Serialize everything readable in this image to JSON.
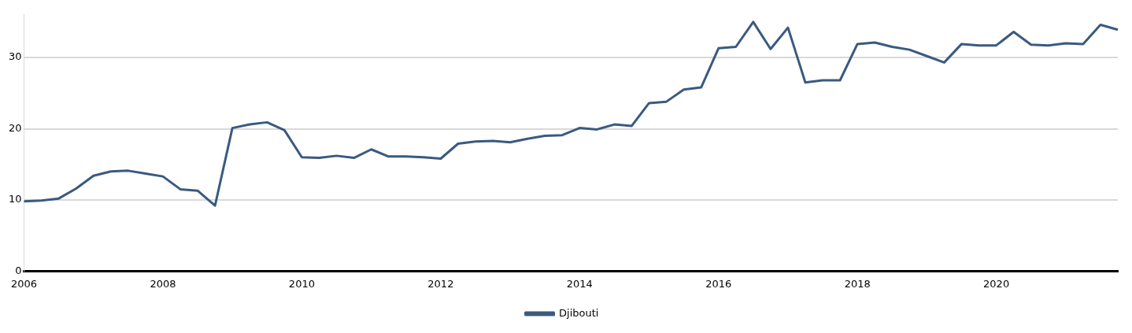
{
  "chart_data": {
    "type": "line",
    "x": [
      2006,
      2006.25,
      2006.5,
      2006.75,
      2007,
      2007.25,
      2007.5,
      2007.75,
      2008,
      2008.25,
      2008.5,
      2008.75,
      2009,
      2009.25,
      2009.5,
      2009.75,
      2010,
      2010.25,
      2010.5,
      2010.75,
      2011,
      2011.25,
      2011.5,
      2011.75,
      2012,
      2012.25,
      2012.5,
      2012.75,
      2013,
      2013.25,
      2013.5,
      2013.75,
      2014,
      2014.25,
      2014.5,
      2014.75,
      2015,
      2015.25,
      2015.5,
      2015.75,
      2016,
      2016.25,
      2016.5,
      2016.75,
      2017,
      2017.25,
      2017.5,
      2017.75,
      2018,
      2018.25,
      2018.5,
      2018.75,
      2019,
      2019.25,
      2019.5,
      2019.75,
      2020,
      2020.25,
      2020.5,
      2020.75,
      2021,
      2021.25,
      2021.5,
      2021.75
    ],
    "series": [
      {
        "name": "Djibouti",
        "color": "#3a5a80",
        "values": [
          9.8,
          9.9,
          10.2,
          11.6,
          13.4,
          14.0,
          14.1,
          13.7,
          13.3,
          11.5,
          11.3,
          9.2,
          20.1,
          20.6,
          20.9,
          19.8,
          16.0,
          15.9,
          16.2,
          15.9,
          17.1,
          16.1,
          16.1,
          16.0,
          15.8,
          17.9,
          18.2,
          18.3,
          18.1,
          18.6,
          19.0,
          19.1,
          20.1,
          19.9,
          20.6,
          20.4,
          23.6,
          23.8,
          25.5,
          25.8,
          31.3,
          31.5,
          35.0,
          31.2,
          34.2,
          26.5,
          26.8,
          26.8,
          31.9,
          32.1,
          31.5,
          31.1,
          30.2,
          29.3,
          31.9,
          31.7,
          31.7,
          33.6,
          31.8,
          31.7,
          32.0,
          31.9,
          34.6,
          33.9
        ]
      }
    ],
    "xlim": [
      2006,
      2021.75
    ],
    "xticks": [
      2006,
      2008,
      2010,
      2012,
      2014,
      2016,
      2018,
      2020
    ],
    "ylim": [
      0,
      36
    ],
    "yticks": [
      0,
      10,
      20,
      30
    ],
    "grid": "y",
    "legend": "bottom",
    "marker": "none",
    "line_style": "solid"
  }
}
